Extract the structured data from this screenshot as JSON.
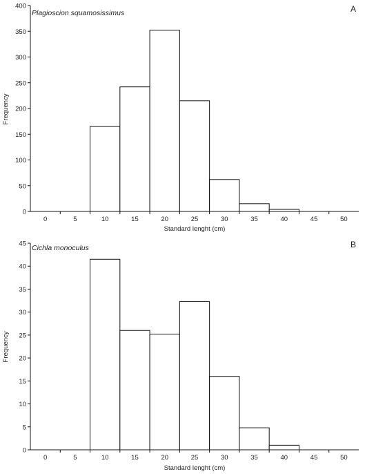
{
  "chart_data": [
    {
      "type": "bar",
      "panel_label": "A",
      "species": "Plagioscion squamosissimus",
      "xlabel": "Standard lenght (cm)",
      "ylabel": "Frequency",
      "x_ticks": [
        "0",
        "5",
        "10",
        "15",
        "20",
        "25",
        "30",
        "35",
        "40",
        "45",
        "50"
      ],
      "y_ticks": [
        "0",
        "50",
        "100",
        "150",
        "200",
        "250",
        "300",
        "350",
        "400"
      ],
      "ylim": [
        0,
        400
      ],
      "categories": [
        "0",
        "5",
        "10",
        "15",
        "20",
        "25",
        "30",
        "35",
        "40",
        "45",
        "50"
      ],
      "values": [
        0,
        0,
        165,
        242,
        352,
        215,
        62,
        15,
        4,
        0,
        0
      ]
    },
    {
      "type": "bar",
      "panel_label": "B",
      "species": "Cichla monoculus",
      "xlabel": "Standard lenght (cm)",
      "ylabel": "Frequency",
      "x_ticks": [
        "0",
        "5",
        "10",
        "15",
        "20",
        "25",
        "30",
        "35",
        "40",
        "45",
        "50"
      ],
      "y_ticks": [
        "0",
        "5",
        "10",
        "15",
        "20",
        "25",
        "30",
        "35",
        "40",
        "45"
      ],
      "ylim": [
        0,
        45
      ],
      "categories": [
        "0",
        "5",
        "10",
        "15",
        "20",
        "25",
        "30",
        "35",
        "40",
        "45",
        "50"
      ],
      "values": [
        0,
        0,
        41.5,
        26,
        25.2,
        32.3,
        16,
        4.8,
        1,
        0,
        0
      ]
    }
  ]
}
